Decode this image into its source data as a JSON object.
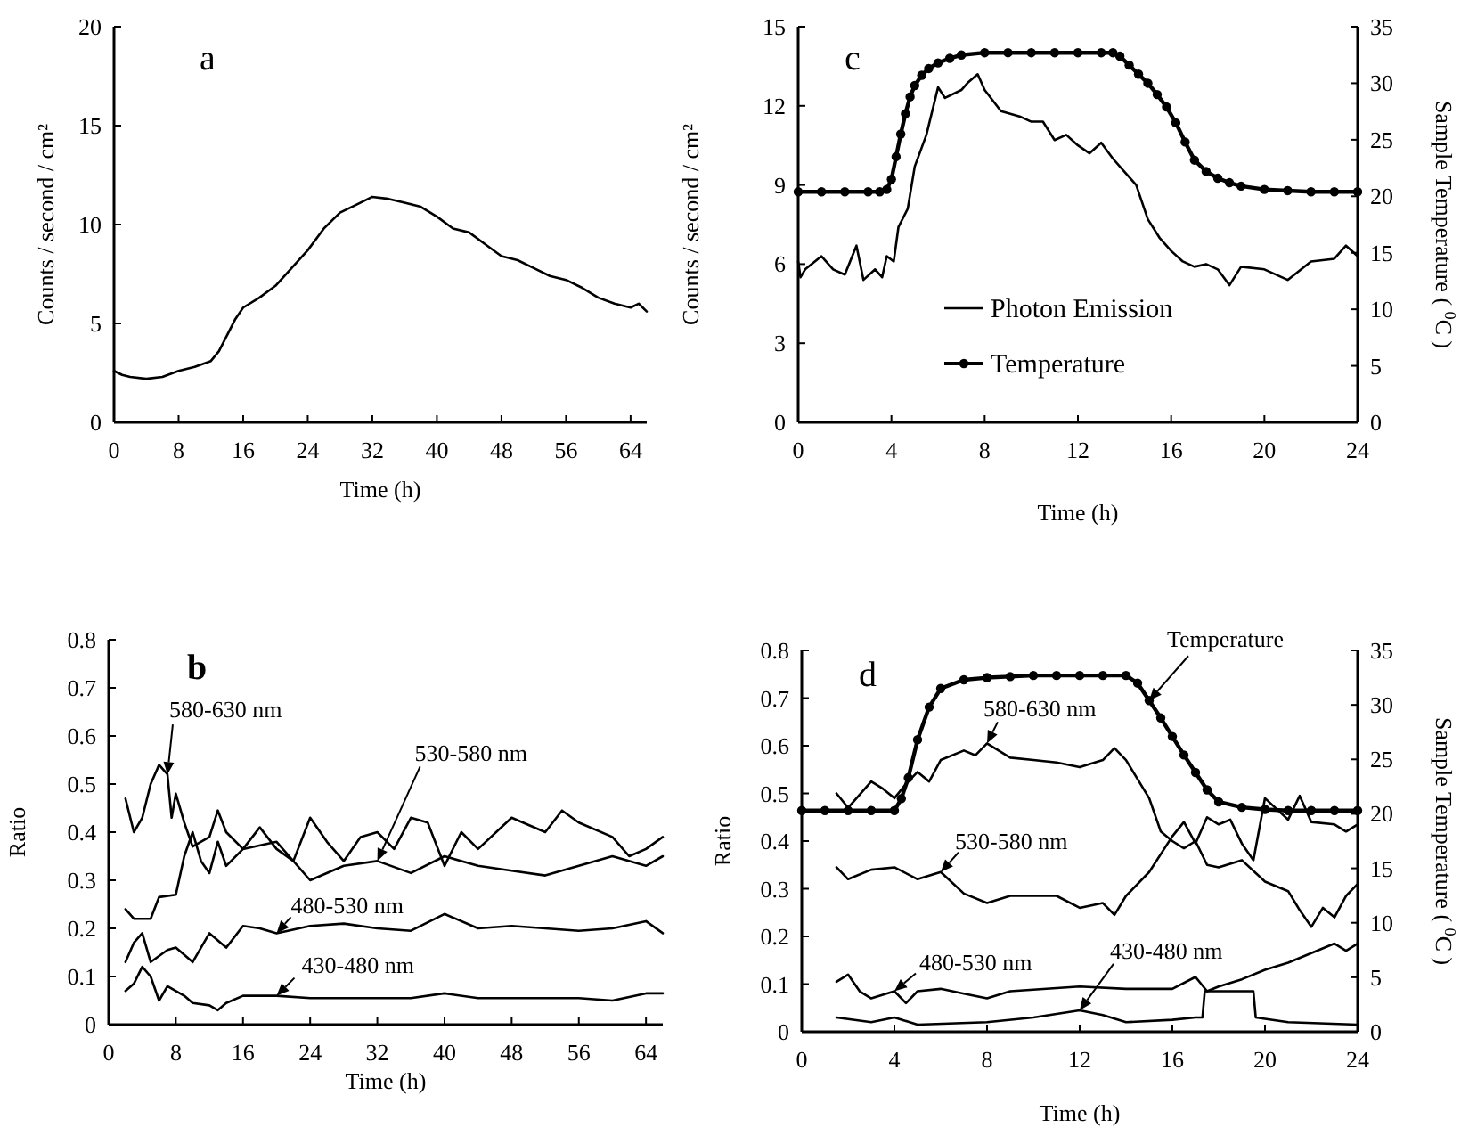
{
  "chart_data": [
    {
      "type": "line",
      "title": "a",
      "xlabel": "Time (h)",
      "ylabel": "Counts / second / cm²",
      "xlim": [
        0,
        66
      ],
      "xticks": [
        0,
        8,
        16,
        24,
        32,
        40,
        48,
        56,
        64
      ],
      "ylim": [
        0,
        20
      ],
      "yticks": [
        0,
        5,
        10,
        15,
        20
      ],
      "series": [
        {
          "color": "#000000",
          "x": [
            0,
            1,
            2,
            4,
            6,
            8,
            10,
            12,
            13,
            14,
            15,
            16,
            18,
            20,
            22,
            24,
            26,
            28,
            30,
            32,
            34,
            36,
            38,
            40,
            42,
            44,
            46,
            48,
            50,
            52,
            54,
            56,
            58,
            60,
            62,
            64,
            65,
            66
          ],
          "values": [
            2.6,
            2.4,
            2.3,
            2.2,
            2.3,
            2.6,
            2.8,
            3.1,
            3.6,
            4.4,
            5.2,
            5.8,
            6.3,
            6.9,
            7.8,
            8.7,
            9.8,
            10.6,
            11.0,
            11.4,
            11.3,
            11.1,
            10.9,
            10.4,
            9.8,
            9.6,
            9.0,
            8.4,
            8.2,
            7.8,
            7.4,
            7.2,
            6.8,
            6.3,
            6.0,
            5.8,
            6.0,
            5.6
          ]
        }
      ]
    },
    {
      "type": "line",
      "title": "c",
      "xlabel": "Time (h)",
      "ylabel": "Counts / second / cm²",
      "y2label": "Sample Temperature ( $^{0}$C )",
      "legend": "bottom",
      "xlim": [
        0,
        24
      ],
      "xticks": [
        0,
        4,
        8,
        12,
        16,
        20,
        24
      ],
      "ylim": [
        0,
        15
      ],
      "yticks": [
        0,
        3,
        6,
        9,
        12,
        15
      ],
      "y2lim": [
        0,
        35
      ],
      "y2ticks": [
        0,
        5,
        10,
        15,
        20,
        25,
        30,
        35
      ],
      "series": [
        {
          "name": "Photon Emission",
          "color": "#000000",
          "x": [
            0,
            0.1,
            0.3,
            1,
            1.5,
            2,
            2.5,
            2.8,
            3.3,
            3.6,
            3.8,
            4.1,
            4.3,
            4.7,
            5,
            5.5,
            6,
            6.3,
            7,
            7.3,
            7.7,
            8,
            8.7,
            9.5,
            10,
            10.5,
            11,
            11.5,
            12,
            12.5,
            13,
            13.5,
            14,
            14.5,
            15,
            15.5,
            16,
            16.5,
            17,
            17.5,
            18,
            18.5,
            19,
            20,
            21,
            22,
            23,
            23.5,
            24
          ],
          "values": [
            6.1,
            5.5,
            5.8,
            6.3,
            5.8,
            5.6,
            6.7,
            5.4,
            5.8,
            5.5,
            6.3,
            6.1,
            7.4,
            8.1,
            9.7,
            10.9,
            12.7,
            12.3,
            12.6,
            12.9,
            13.2,
            12.6,
            11.8,
            11.6,
            11.4,
            11.4,
            10.7,
            10.9,
            10.5,
            10.2,
            10.6,
            10.0,
            9.5,
            9.0,
            7.7,
            7.0,
            6.5,
            6.1,
            5.9,
            6.0,
            5.8,
            5.2,
            5.9,
            5.8,
            5.4,
            6.1,
            6.2,
            6.7,
            6.3
          ]
        },
        {
          "name": "Temperature",
          "color": "#000000",
          "axis": "y2",
          "marker": "circle",
          "x": [
            0,
            1,
            2,
            3,
            3.5,
            3.8,
            4,
            4.2,
            4.4,
            4.6,
            4.8,
            5,
            5.3,
            5.6,
            6,
            6.5,
            7,
            8,
            9,
            10,
            11,
            12,
            13,
            13.5,
            13.8,
            14.2,
            14.6,
            15,
            15.4,
            15.8,
            16.2,
            16.6,
            17,
            17.5,
            18,
            18.5,
            19,
            20,
            21,
            22,
            23,
            24
          ],
          "values": [
            20.4,
            20.4,
            20.4,
            20.4,
            20.4,
            20.6,
            21.5,
            23.5,
            25.5,
            27.3,
            28.8,
            29.8,
            30.7,
            31.3,
            31.8,
            32.2,
            32.5,
            32.7,
            32.7,
            32.7,
            32.7,
            32.7,
            32.7,
            32.7,
            32.4,
            31.6,
            30.8,
            30,
            29,
            27.9,
            26.5,
            24.8,
            23.2,
            22.2,
            21.6,
            21.2,
            20.9,
            20.6,
            20.5,
            20.4,
            20.4,
            20.4
          ]
        }
      ]
    },
    {
      "type": "line",
      "title": "b",
      "xlabel": "Time (h)",
      "ylabel": "Ratio",
      "xlim": [
        0,
        66
      ],
      "xticks": [
        0,
        8,
        16,
        24,
        32,
        40,
        48,
        56,
        64
      ],
      "ylim": [
        0,
        0.8
      ],
      "yticks": [
        0,
        0.1,
        0.2,
        0.3,
        0.4,
        0.5,
        0.6,
        0.7,
        0.8
      ],
      "series": [
        {
          "name": "580-630 nm",
          "color": "#000000",
          "x": [
            2,
            3,
            4,
            5,
            6,
            7,
            7.5,
            8,
            9,
            10,
            12,
            13,
            14,
            16,
            18,
            20,
            22,
            24,
            26,
            28,
            30,
            32,
            34,
            36,
            38,
            40,
            42,
            44,
            48,
            52,
            54,
            56,
            60,
            62,
            64,
            66
          ],
          "values": [
            0.47,
            0.4,
            0.43,
            0.5,
            0.54,
            0.52,
            0.43,
            0.48,
            0.42,
            0.37,
            0.39,
            0.445,
            0.4,
            0.365,
            0.41,
            0.365,
            0.34,
            0.43,
            0.38,
            0.34,
            0.39,
            0.4,
            0.365,
            0.43,
            0.42,
            0.33,
            0.4,
            0.365,
            0.43,
            0.4,
            0.445,
            0.42,
            0.39,
            0.35,
            0.365,
            0.39
          ]
        },
        {
          "name": "530-580 nm",
          "color": "#000000",
          "x": [
            2,
            3,
            5,
            6,
            8,
            9,
            10,
            11,
            12,
            13,
            14,
            16,
            20,
            24,
            28,
            32,
            36,
            40,
            44,
            48,
            52,
            56,
            60,
            64,
            66
          ],
          "values": [
            0.24,
            0.22,
            0.22,
            0.265,
            0.27,
            0.35,
            0.4,
            0.34,
            0.315,
            0.38,
            0.33,
            0.365,
            0.38,
            0.3,
            0.33,
            0.34,
            0.315,
            0.35,
            0.33,
            0.32,
            0.31,
            0.33,
            0.35,
            0.33,
            0.35
          ]
        },
        {
          "name": "480-530 nm",
          "color": "#000000",
          "x": [
            2,
            3,
            4,
            5,
            7,
            8,
            10,
            12,
            14,
            16,
            18,
            20,
            24,
            28,
            32,
            36,
            40,
            44,
            48,
            52,
            56,
            60,
            64,
            66
          ],
          "values": [
            0.13,
            0.17,
            0.19,
            0.13,
            0.155,
            0.16,
            0.13,
            0.19,
            0.16,
            0.205,
            0.2,
            0.19,
            0.205,
            0.21,
            0.2,
            0.195,
            0.23,
            0.2,
            0.205,
            0.2,
            0.195,
            0.2,
            0.215,
            0.19
          ]
        },
        {
          "name": "430-480 nm",
          "color": "#000000",
          "x": [
            2,
            3,
            4,
            5,
            6,
            7,
            9,
            10,
            12,
            13,
            14,
            16,
            20,
            24,
            28,
            32,
            36,
            40,
            44,
            48,
            56,
            60,
            64,
            66
          ],
          "values": [
            0.07,
            0.085,
            0.12,
            0.1,
            0.05,
            0.08,
            0.06,
            0.045,
            0.04,
            0.03,
            0.045,
            0.06,
            0.06,
            0.055,
            0.055,
            0.055,
            0.055,
            0.065,
            0.055,
            0.055,
            0.055,
            0.05,
            0.065,
            0.065
          ]
        }
      ]
    },
    {
      "type": "line",
      "title": "d",
      "xlabel": "Time (h)",
      "ylabel": "Ratio",
      "y2label": "Sample Temperature ( $^{0}$C )",
      "xlim": [
        0,
        24
      ],
      "xticks": [
        0,
        4,
        8,
        12,
        16,
        20,
        24
      ],
      "ylim": [
        0,
        0.8
      ],
      "yticks": [
        0,
        0.1,
        0.2,
        0.3,
        0.4,
        0.5,
        0.6,
        0.7,
        0.8
      ],
      "y2lim": [
        0,
        35
      ],
      "y2ticks": [
        0,
        5,
        10,
        15,
        20,
        25,
        30,
        35
      ],
      "series": [
        {
          "name": "Temperature",
          "color": "#000000",
          "axis": "y2",
          "marker": "circle",
          "x": [
            0,
            1,
            2,
            3,
            4,
            4.3,
            4.6,
            5,
            5.5,
            6,
            7,
            8,
            9,
            10,
            11,
            12,
            13,
            14,
            14.5,
            15,
            15.5,
            16,
            16.5,
            17,
            17.5,
            18,
            19,
            20,
            21,
            22,
            23,
            24
          ],
          "values": [
            20.3,
            20.3,
            20.3,
            20.3,
            20.3,
            21.4,
            23.3,
            26.8,
            29.8,
            31.5,
            32.3,
            32.5,
            32.6,
            32.7,
            32.7,
            32.7,
            32.7,
            32.7,
            32,
            30.4,
            28.8,
            27.1,
            25.4,
            23.8,
            22.2,
            21.1,
            20.6,
            20.4,
            20.3,
            20.3,
            20.3,
            20.3
          ]
        },
        {
          "name": "580-630 nm",
          "color": "#000000",
          "x": [
            1.5,
            2,
            3,
            3.5,
            4,
            4.5,
            5,
            5.5,
            6,
            7,
            7.5,
            8,
            9,
            10,
            11,
            12,
            13,
            13.5,
            14,
            15,
            15.5,
            16,
            16.5,
            17,
            17.5,
            18,
            19,
            20,
            21,
            21.5,
            22,
            22.5,
            23,
            23.5,
            24
          ],
          "values": [
            0.5,
            0.47,
            0.525,
            0.51,
            0.49,
            0.52,
            0.545,
            0.525,
            0.57,
            0.59,
            0.58,
            0.605,
            0.575,
            0.57,
            0.565,
            0.555,
            0.57,
            0.595,
            0.57,
            0.49,
            0.42,
            0.4,
            0.385,
            0.4,
            0.35,
            0.345,
            0.36,
            0.315,
            0.295,
            0.255,
            0.22,
            0.26,
            0.24,
            0.285,
            0.31
          ]
        },
        {
          "name": "530-580 nm",
          "color": "#000000",
          "x": [
            1.5,
            2,
            3,
            4,
            5,
            6,
            7,
            8,
            9,
            10,
            11,
            12,
            13,
            13.5,
            14,
            15,
            16,
            16.5,
            17,
            17.5,
            18,
            18.5,
            19,
            19.5,
            20,
            21,
            21.5,
            22,
            23,
            23.5,
            24
          ],
          "values": [
            0.345,
            0.32,
            0.34,
            0.345,
            0.32,
            0.335,
            0.29,
            0.27,
            0.285,
            0.285,
            0.285,
            0.26,
            0.27,
            0.245,
            0.285,
            0.335,
            0.41,
            0.44,
            0.395,
            0.45,
            0.435,
            0.445,
            0.395,
            0.36,
            0.49,
            0.445,
            0.495,
            0.44,
            0.435,
            0.42,
            0.435
          ]
        },
        {
          "name": "480-530 nm",
          "color": "#000000",
          "x": [
            1.5,
            2,
            2.5,
            3,
            4,
            4.5,
            5,
            6,
            7,
            8,
            9,
            12,
            14,
            16,
            17,
            17.5,
            18,
            19,
            20,
            21,
            22,
            23,
            23.5,
            24
          ],
          "values": [
            0.105,
            0.12,
            0.085,
            0.07,
            0.085,
            0.06,
            0.085,
            0.09,
            0.08,
            0.07,
            0.085,
            0.095,
            0.09,
            0.09,
            0.115,
            0.085,
            0.095,
            0.11,
            0.13,
            0.145,
            0.165,
            0.185,
            0.17,
            0.185
          ]
        },
        {
          "name": "430-480 nm",
          "color": "#000000",
          "x": [
            1.5,
            3,
            4,
            5,
            8,
            10,
            12,
            13,
            14,
            16,
            17,
            17.3,
            17.4,
            19.5,
            19.6,
            21,
            24
          ],
          "values": [
            0.03,
            0.02,
            0.03,
            0.015,
            0.02,
            0.03,
            0.045,
            0.035,
            0.02,
            0.025,
            0.03,
            0.03,
            0.085,
            0.085,
            0.03,
            0.02,
            0.015
          ]
        }
      ]
    }
  ]
}
